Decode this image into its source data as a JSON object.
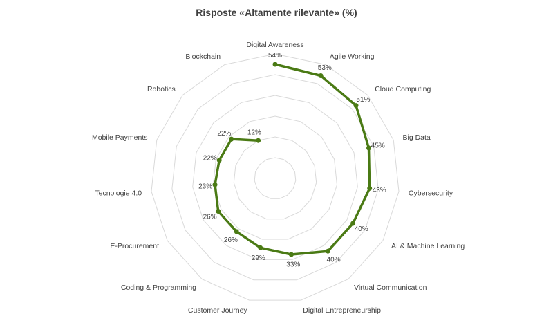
{
  "chart_data": {
    "type": "radar",
    "title": "Risposte «Altamente rilevante» (%)",
    "categories": [
      "Digital Awareness",
      "Agile Working",
      "Cloud Computing",
      "Big Data",
      "Cybersecurity",
      "AI & Machine Learning",
      "Virtual Communication",
      "Digital Entrepreneurship",
      "Customer Journey",
      "Coding & Programming",
      "E-Procurement",
      "Tecnologie 4.0",
      "Mobile Payments",
      "Robotics",
      "Blockchain"
    ],
    "series": [
      {
        "values": [
          54,
          53,
          51,
          45,
          43,
          40,
          40,
          33,
          29,
          26,
          26,
          23,
          22,
          22,
          12
        ],
        "value_labels": [
          "54%",
          "53%",
          "51%",
          "45%",
          "43%",
          "40%",
          "40%",
          "33%",
          "29%",
          "26%",
          "26%",
          "23%",
          "22%",
          "22%",
          "12%"
        ],
        "color": "#4a7a14"
      }
    ],
    "range": [
      0,
      60
    ],
    "grid": true,
    "gridlines": 5,
    "legend": "none"
  }
}
